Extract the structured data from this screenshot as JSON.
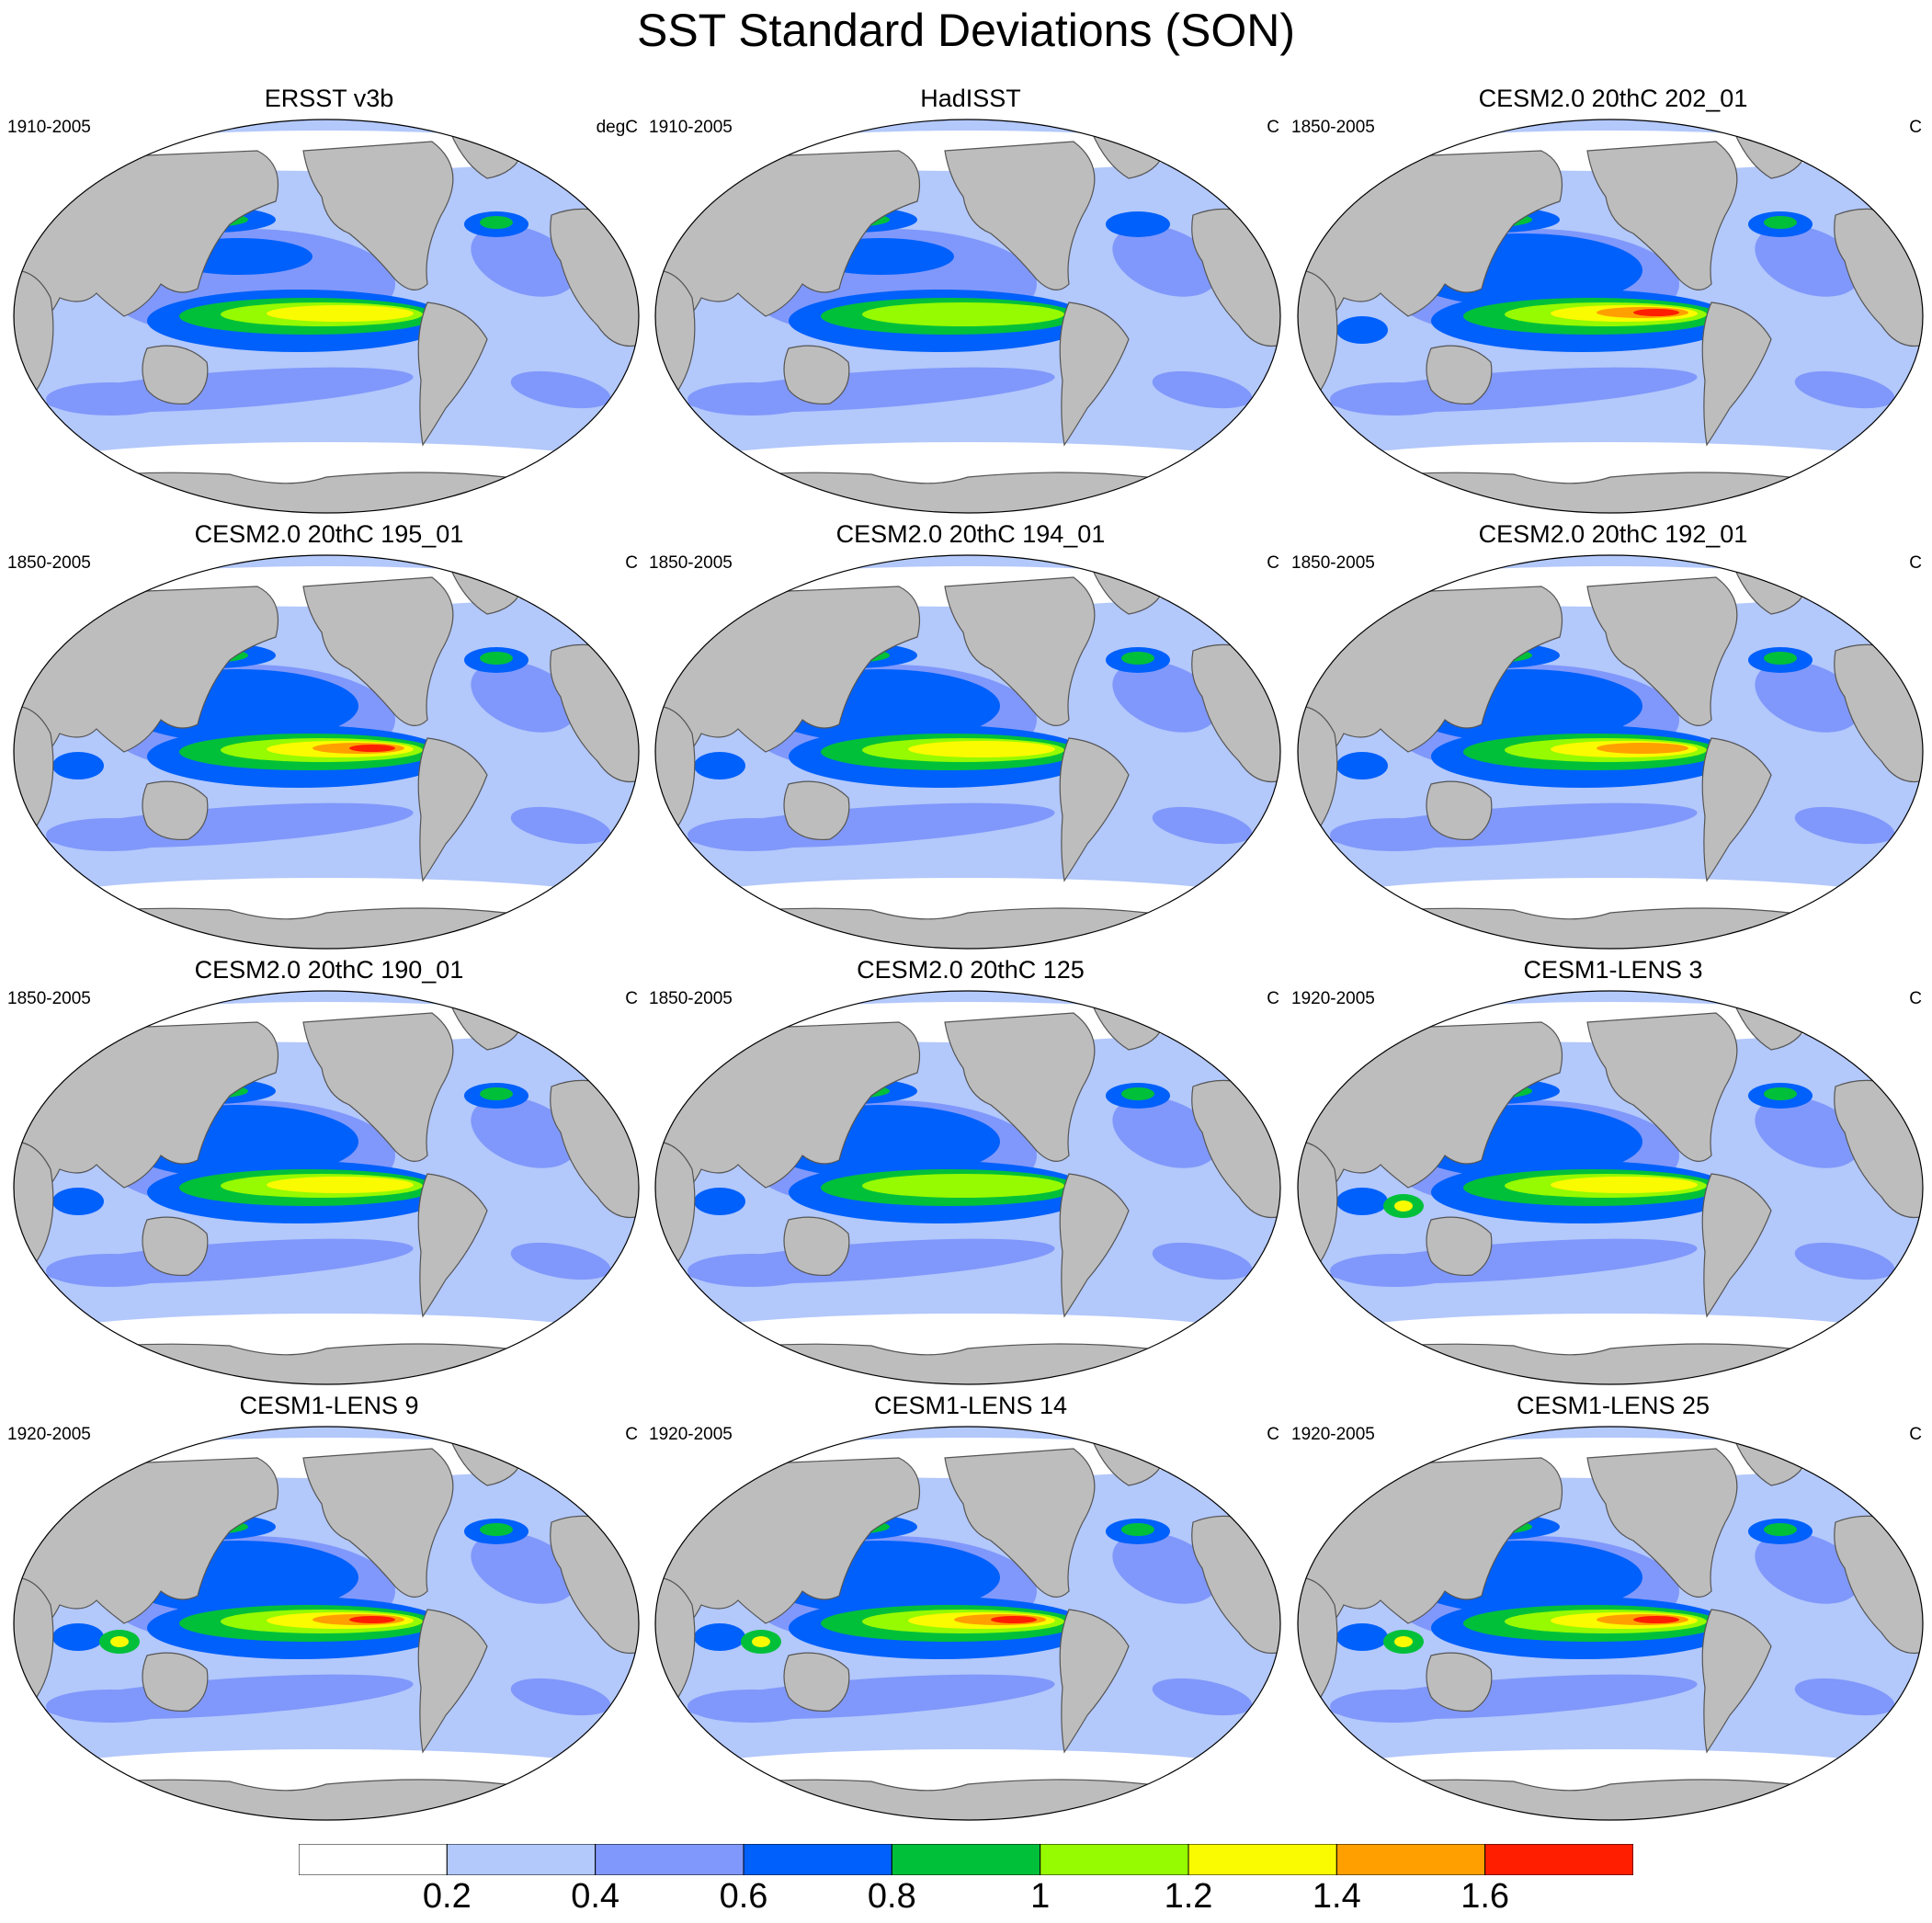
{
  "title": "SST Standard Deviations (SON)",
  "panels": [
    {
      "title": "ERSST v3b",
      "period": "1910-2005",
      "units": "degC",
      "variant": "obs1",
      "nino_max": 1.2
    },
    {
      "title": "HadISST",
      "period": "1910-2005",
      "units": "C",
      "variant": "obs2",
      "nino_max": 1.0
    },
    {
      "title": "CESM2.0 20thC 202_01",
      "period": "1850-2005",
      "units": "C",
      "variant": "strong",
      "nino_max": 1.6
    },
    {
      "title": "CESM2.0 20thC 195_01",
      "period": "1850-2005",
      "units": "C",
      "variant": "strong",
      "nino_max": 1.6
    },
    {
      "title": "CESM2.0 20thC 194_01",
      "period": "1850-2005",
      "units": "C",
      "variant": "medium",
      "nino_max": 1.2
    },
    {
      "title": "CESM2.0 20thC 192_01",
      "period": "1850-2005",
      "units": "C",
      "variant": "medium",
      "nino_max": 1.4
    },
    {
      "title": "CESM2.0 20thC 190_01",
      "period": "1850-2005",
      "units": "C",
      "variant": "medium",
      "nino_max": 1.2
    },
    {
      "title": "CESM2.0 20thC 125",
      "period": "1850-2005",
      "units": "C",
      "variant": "medium",
      "nino_max": 1.0
    },
    {
      "title": "CESM1-LENS 3",
      "period": "1920-2005",
      "units": "C",
      "variant": "lens",
      "nino_max": 1.2
    },
    {
      "title": "CESM1-LENS 9",
      "period": "1920-2005",
      "units": "C",
      "variant": "lens",
      "nino_max": 1.6
    },
    {
      "title": "CESM1-LENS 14",
      "period": "1920-2005",
      "units": "C",
      "variant": "lens",
      "nino_max": 1.6
    },
    {
      "title": "CESM1-LENS 25",
      "period": "1920-2005",
      "units": "C",
      "variant": "lens",
      "nino_max": 1.6
    }
  ],
  "colorbar": {
    "colors": [
      "#ffffff",
      "#b3c8fb",
      "#8098fb",
      "#0060fb",
      "#00c03a",
      "#96fa00",
      "#fafa00",
      "#ffa000",
      "#ff1e00"
    ],
    "labels": [
      "0.2",
      "0.4",
      "0.6",
      "0.8",
      "1",
      "1.2",
      "1.4",
      "1.6"
    ]
  },
  "land_color": "#bdbdbd"
}
